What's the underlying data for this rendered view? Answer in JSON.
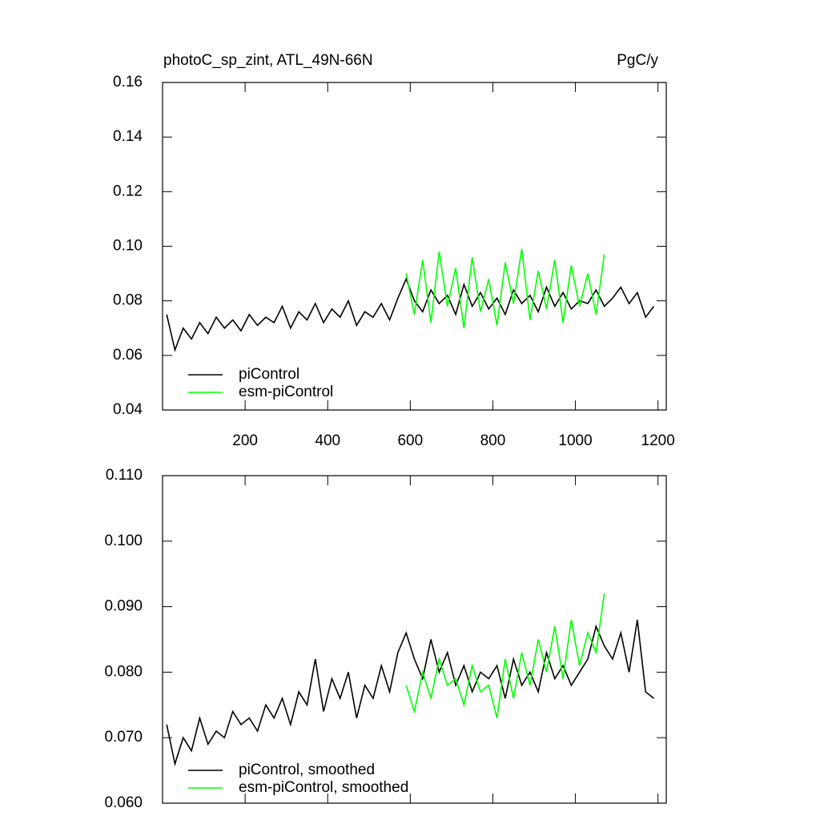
{
  "chart_data": [
    {
      "type": "line",
      "title": "photoC_sp_zint, ATL_49N-66N",
      "units": "PgC/y",
      "x": [
        10,
        30,
        50,
        70,
        90,
        110,
        130,
        150,
        170,
        190,
        210,
        230,
        250,
        270,
        290,
        310,
        330,
        350,
        370,
        390,
        410,
        430,
        450,
        470,
        490,
        510,
        530,
        550,
        570,
        590,
        610,
        630,
        650,
        670,
        690,
        710,
        730,
        750,
        770,
        790,
        810,
        830,
        850,
        870,
        890,
        910,
        930,
        950,
        970,
        990,
        1010,
        1030,
        1050,
        1070,
        1090,
        1110,
        1130,
        1150,
        1170,
        1190
      ],
      "series": [
        {
          "name": "piControl",
          "color": "#000000",
          "values": [
            0.075,
            0.062,
            0.07,
            0.066,
            0.072,
            0.068,
            0.074,
            0.07,
            0.073,
            0.069,
            0.075,
            0.071,
            0.074,
            0.072,
            0.078,
            0.07,
            0.076,
            0.073,
            0.079,
            0.072,
            0.077,
            0.074,
            0.08,
            0.071,
            0.076,
            0.074,
            0.079,
            0.073,
            0.081,
            0.088,
            0.08,
            0.076,
            0.084,
            0.079,
            0.082,
            0.075,
            0.086,
            0.078,
            0.083,
            0.077,
            0.081,
            0.075,
            0.084,
            0.079,
            0.082,
            0.076,
            0.085,
            0.078,
            0.083,
            0.077,
            0.08,
            0.079,
            0.084,
            0.078,
            0.081,
            0.085,
            0.079,
            0.083,
            0.074,
            0.078
          ]
        },
        {
          "name": "esm-piControl",
          "color": "#00ff00",
          "values": [
            null,
            null,
            null,
            null,
            null,
            null,
            null,
            null,
            null,
            null,
            null,
            null,
            null,
            null,
            null,
            null,
            null,
            null,
            null,
            null,
            null,
            null,
            null,
            null,
            null,
            null,
            null,
            null,
            null,
            0.09,
            0.075,
            0.095,
            0.072,
            0.098,
            0.078,
            0.092,
            0.07,
            0.096,
            0.076,
            0.088,
            0.071,
            0.094,
            0.079,
            0.099,
            0.073,
            0.091,
            0.077,
            0.095,
            0.072,
            0.093,
            0.078,
            0.09,
            0.075,
            0.097,
            null,
            null,
            null,
            null,
            null,
            null
          ]
        }
      ],
      "xlim": [
        0,
        1220
      ],
      "xticks": [
        200,
        400,
        600,
        800,
        1000,
        1200
      ],
      "ylim": [
        0.04,
        0.16
      ],
      "yticks": [
        0.04,
        0.06,
        0.08,
        {
          "value": 0.1,
          "label": "0.10"
        },
        0.12,
        0.14,
        0.16
      ]
    },
    {
      "type": "line",
      "x": [
        10,
        30,
        50,
        70,
        90,
        110,
        130,
        150,
        170,
        190,
        210,
        230,
        250,
        270,
        290,
        310,
        330,
        350,
        370,
        390,
        410,
        430,
        450,
        470,
        490,
        510,
        530,
        550,
        570,
        590,
        610,
        630,
        650,
        670,
        690,
        710,
        730,
        750,
        770,
        790,
        810,
        830,
        850,
        870,
        890,
        910,
        930,
        950,
        970,
        990,
        1010,
        1030,
        1050,
        1070,
        1090,
        1110,
        1130,
        1150,
        1170,
        1190
      ],
      "series": [
        {
          "name": "piControl, smoothed",
          "color": "#000000",
          "values": [
            0.072,
            0.066,
            0.07,
            0.068,
            0.073,
            0.069,
            0.071,
            0.07,
            0.074,
            0.072,
            0.073,
            0.071,
            0.075,
            0.073,
            0.076,
            0.072,
            0.077,
            0.075,
            0.082,
            0.074,
            0.079,
            0.076,
            0.08,
            0.073,
            0.078,
            0.076,
            0.081,
            0.077,
            0.083,
            0.086,
            0.082,
            0.079,
            0.085,
            0.08,
            0.083,
            0.078,
            0.081,
            0.077,
            0.08,
            0.079,
            0.081,
            0.076,
            0.082,
            0.078,
            0.08,
            0.077,
            0.083,
            0.079,
            0.081,
            0.078,
            0.08,
            0.082,
            0.087,
            0.084,
            0.082,
            0.086,
            0.08,
            0.088,
            0.077,
            0.076
          ]
        },
        {
          "name": "esm-piControl, smoothed",
          "color": "#00ff00",
          "values": [
            null,
            null,
            null,
            null,
            null,
            null,
            null,
            null,
            null,
            null,
            null,
            null,
            null,
            null,
            null,
            null,
            null,
            null,
            null,
            null,
            null,
            null,
            null,
            null,
            null,
            null,
            null,
            null,
            null,
            0.078,
            0.074,
            0.08,
            0.076,
            0.082,
            0.078,
            0.079,
            0.075,
            0.081,
            0.077,
            0.078,
            0.073,
            0.082,
            0.076,
            0.083,
            0.078,
            0.085,
            0.08,
            0.087,
            0.079,
            0.088,
            0.081,
            0.086,
            0.083,
            0.092,
            null,
            null,
            null,
            null,
            null,
            null
          ]
        }
      ],
      "xlim": [
        0,
        1220
      ],
      "xticks": [
        200,
        400,
        600,
        800,
        1000,
        1200
      ],
      "ylim": [
        0.06,
        0.11
      ],
      "yticks": [
        {
          "value": 0.06,
          "label": "0.060"
        },
        {
          "value": 0.07,
          "label": "0.070"
        },
        {
          "value": 0.08,
          "label": "0.080"
        },
        {
          "value": 0.09,
          "label": "0.090"
        },
        {
          "value": 0.1,
          "label": "0.100"
        },
        {
          "value": 0.11,
          "label": "0.110"
        }
      ]
    }
  ]
}
